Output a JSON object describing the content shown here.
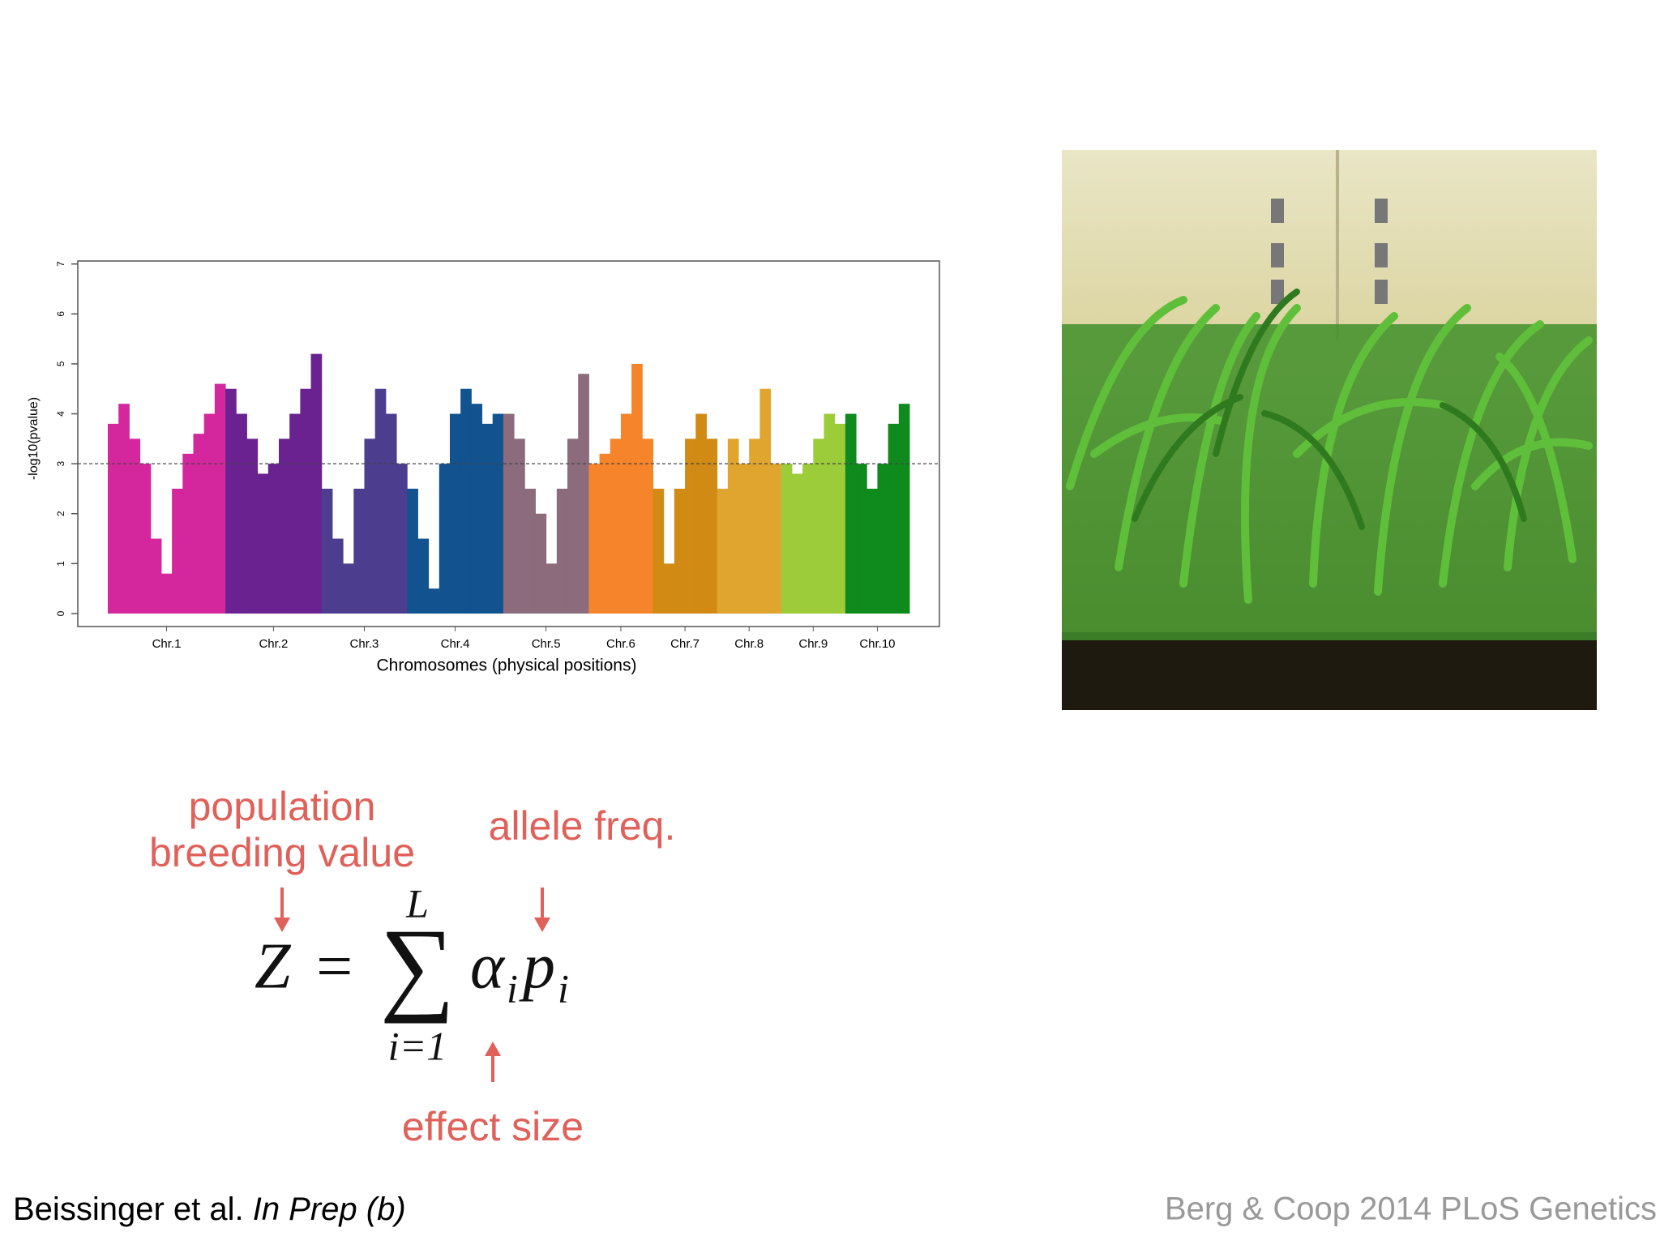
{
  "chart_data": {
    "type": "manhattan",
    "xlabel": "Chromosomes (physical positions)",
    "ylabel": "-log10(pvalue)",
    "ylim": [
      -0.26,
      7.06
    ],
    "yticks": [
      0,
      1,
      2,
      3,
      4,
      5,
      6,
      7
    ],
    "threshold": 3,
    "grid": false,
    "series": [
      {
        "name": "Chr.1",
        "color": "#d4279d",
        "values": [
          3.8,
          4.2,
          3.5,
          3.0,
          1.5,
          0.8,
          2.5,
          3.2,
          3.6,
          4.0,
          4.6
        ]
      },
      {
        "name": "Chr.2",
        "color": "#6a2290",
        "values": [
          4.5,
          4.0,
          3.5,
          2.8,
          3.0,
          3.5,
          4.0,
          4.5,
          5.2
        ]
      },
      {
        "name": "Chr.3",
        "color": "#4d3d8e",
        "values": [
          2.5,
          1.5,
          1.0,
          2.5,
          3.5,
          4.5,
          4.0,
          3.0
        ]
      },
      {
        "name": "Chr.4",
        "color": "#11528f",
        "values": [
          2.5,
          1.5,
          0.5,
          3.0,
          4.0,
          4.5,
          4.2,
          3.8,
          4.0
        ]
      },
      {
        "name": "Chr.5",
        "color": "#8b6b7c",
        "values": [
          4.0,
          3.5,
          2.5,
          2.0,
          1.0,
          2.5,
          3.5,
          4.8
        ]
      },
      {
        "name": "Chr.6",
        "color": "#f5842b",
        "values": [
          3.0,
          3.2,
          3.5,
          4.0,
          5.0,
          3.5
        ]
      },
      {
        "name": "Chr.7",
        "color": "#d18a14",
        "values": [
          2.5,
          1.0,
          2.5,
          3.5,
          4.0,
          3.5
        ]
      },
      {
        "name": "Chr.8",
        "color": "#e0a52f",
        "values": [
          2.5,
          3.5,
          3.0,
          3.5,
          4.5,
          3.0
        ]
      },
      {
        "name": "Chr.9",
        "color": "#9dcc3a",
        "values": [
          3.0,
          2.8,
          3.0,
          3.5,
          4.0,
          3.8
        ]
      },
      {
        "name": "Chr.10",
        "color": "#0f8a1d",
        "values": [
          4.0,
          3.0,
          2.5,
          3.0,
          3.8,
          4.2
        ]
      }
    ]
  },
  "slide": {
    "annotations": {
      "breeding": [
        "population",
        "breeding value"
      ],
      "allele": "allele freq.",
      "effect": "effect size"
    },
    "equation": {
      "lhs": "Z",
      "eq": "=",
      "sum": "∑",
      "upper": "L",
      "lower": "i=1",
      "alpha": "α",
      "sub1": "i",
      "p": "p",
      "sub2": "i"
    },
    "citations": {
      "left": "Beissinger et al. ",
      "left_italic": "In Prep (b)",
      "right": "Berg & Coop 2014 PLoS Genetics"
    }
  }
}
